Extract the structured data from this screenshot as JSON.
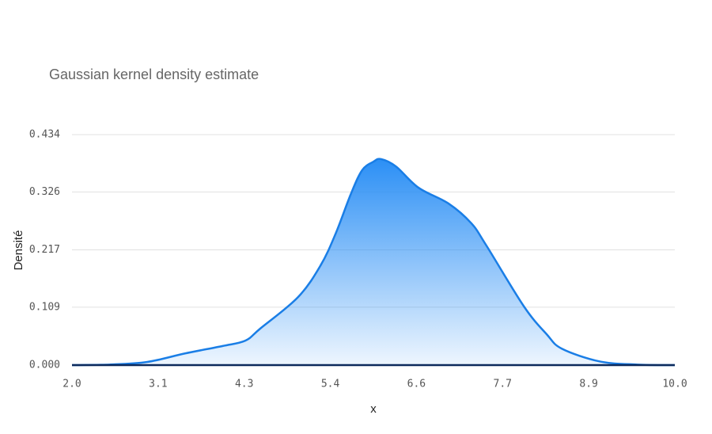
{
  "chart_data": {
    "type": "area",
    "title": "Gaussian kernel density estimate",
    "xlabel": "x",
    "ylabel": "Densité",
    "x": [
      2.0,
      2.5,
      3.0,
      3.5,
      4.0,
      4.3,
      4.5,
      5.0,
      5.3,
      5.5,
      5.7,
      5.85,
      6.0,
      6.1,
      6.3,
      6.6,
      7.0,
      7.3,
      7.5,
      8.0,
      8.3,
      8.5,
      9.0,
      9.5,
      10.0
    ],
    "values": [
      0,
      0.001,
      0.006,
      0.022,
      0.036,
      0.046,
      0.069,
      0.128,
      0.188,
      0.248,
      0.322,
      0.367,
      0.383,
      0.388,
      0.374,
      0.334,
      0.304,
      0.267,
      0.225,
      0.11,
      0.058,
      0.031,
      0.007,
      0.001,
      0
    ],
    "color": "#1a7ee6",
    "xlim": [
      2.0,
      10.0
    ],
    "xticks": [
      {
        "value": 2,
        "label": "2.0"
      },
      {
        "value": 3.143,
        "label": "3.1"
      },
      {
        "value": 4.286,
        "label": "4.3"
      },
      {
        "value": 5.429,
        "label": "5.4"
      },
      {
        "value": 6.571,
        "label": "6.6"
      },
      {
        "value": 7.714,
        "label": "7.7"
      },
      {
        "value": 8.857,
        "label": "8.9"
      },
      {
        "value": 10,
        "label": "10.0"
      }
    ],
    "ylim": [
      0,
      0.434
    ],
    "yticks": [
      {
        "value": 0,
        "label": "0.000"
      },
      0.109,
      0.217,
      0.326,
      0.434
    ],
    "grid": true
  }
}
